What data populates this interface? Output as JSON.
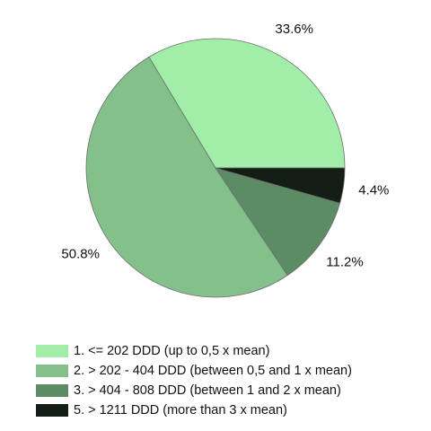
{
  "chart_data": {
    "type": "pie",
    "title": "",
    "start_angle_deg": 0,
    "direction": "counterclockwise",
    "series": [
      {
        "name": "1. <= 202 DDD (up to 0,5 x mean)",
        "value": 33.6,
        "label": "33.6%",
        "color": "#a0eea8"
      },
      {
        "name": "2. > 202 - 404 DDD (between 0,5 and 1 x mean)",
        "value": 50.8,
        "label": "50.8%",
        "color": "#84c08a"
      },
      {
        "name": "3. > 404 - 808 DDD (between 1 and 2 x mean)",
        "value": 11.2,
        "label": "11.2%",
        "color": "#5c8c63"
      },
      {
        "name": "5. > 1211 DDD (more than 3 x mean)",
        "value": 4.4,
        "label": "4.4%",
        "color": "#141e16"
      }
    ],
    "legend_position": "bottom"
  }
}
